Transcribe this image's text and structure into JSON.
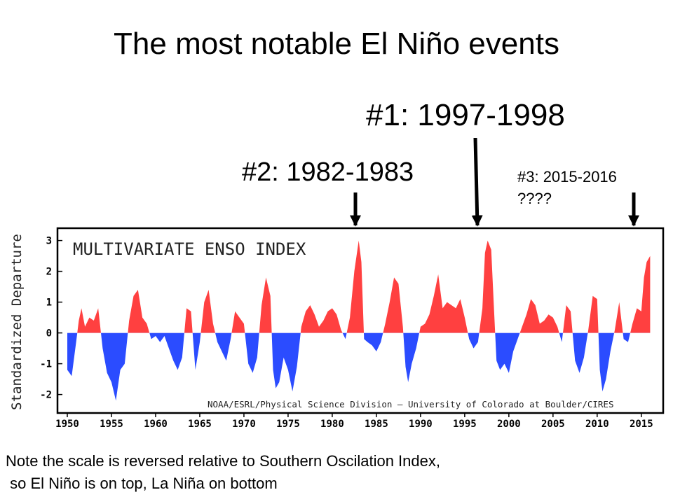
{
  "slide": {
    "title": "The most notable El Niño events",
    "callouts": [
      "#1: 1997-1998",
      "#2: 1982-1983"
    ],
    "callout3": [
      "#3: 2015-2016",
      "????"
    ],
    "note_lines": [
      "Note the scale is reversed relative to Southern Oscilation Index,",
      " so El Niño is on top, La Niña on bottom"
    ]
  },
  "chart_data": {
    "type": "area",
    "title": "MULTIVARIATE ENSO INDEX",
    "ylabel": "Standardized Departure",
    "xlabel": "",
    "credit": "NOAA/ESRL/Physical Science Division – University of Colorado at Boulder/CIRES",
    "xlim": [
      1950,
      2017
    ],
    "ylim": [
      -2.6,
      3.4
    ],
    "x_ticks": [
      1950,
      1955,
      1960,
      1965,
      1970,
      1975,
      1980,
      1985,
      1990,
      1995,
      2000,
      2005,
      2010,
      2015
    ],
    "y_ticks": [
      -2,
      -1,
      0,
      1,
      2,
      3
    ],
    "grid": false,
    "colors": {
      "positive": "#ff4040",
      "negative": "#2b4cff",
      "frame": "#000000"
    },
    "series": [
      {
        "x": [
          1950.0,
          1950.5,
          1951.0,
          1951.3,
          1951.6,
          1952.0,
          1952.5,
          1953.0,
          1953.5,
          1954.0,
          1954.5,
          1955.0,
          1955.5,
          1956.0,
          1956.5,
          1957.0,
          1957.5,
          1958.0,
          1958.5,
          1959.0,
          1959.5,
          1960.0,
          1960.5,
          1961.0,
          1961.5,
          1962.0,
          1962.5,
          1963.0,
          1963.5,
          1964.0,
          1964.5,
          1965.0,
          1965.5,
          1966.0,
          1966.5,
          1967.0,
          1967.5,
          1968.0,
          1968.5,
          1969.0,
          1969.5,
          1970.0,
          1970.5,
          1971.0,
          1971.5,
          1972.0,
          1972.5,
          1973.0,
          1973.3,
          1973.6,
          1974.0,
          1974.5,
          1975.0,
          1975.5,
          1976.0,
          1976.5,
          1977.0,
          1977.5,
          1978.0,
          1978.5,
          1979.0,
          1979.5,
          1980.0,
          1980.5,
          1981.0,
          1981.5,
          1982.0,
          1982.5,
          1983.0,
          1983.3,
          1983.6,
          1984.0,
          1984.5,
          1985.0,
          1985.5,
          1986.0,
          1986.5,
          1987.0,
          1987.5,
          1988.0,
          1988.3,
          1988.6,
          1989.0,
          1989.5,
          1990.0,
          1990.5,
          1991.0,
          1991.5,
          1992.0,
          1992.5,
          1993.0,
          1993.5,
          1994.0,
          1994.5,
          1995.0,
          1995.5,
          1996.0,
          1996.5,
          1997.0,
          1997.3,
          1997.6,
          1998.0,
          1998.3,
          1998.6,
          1999.0,
          1999.5,
          2000.0,
          2000.5,
          2001.0,
          2001.5,
          2002.0,
          2002.5,
          2003.0,
          2003.5,
          2004.0,
          2004.5,
          2005.0,
          2005.5,
          2006.0,
          2006.5,
          2007.0,
          2007.5,
          2008.0,
          2008.5,
          2009.0,
          2009.5,
          2010.0,
          2010.3,
          2010.6,
          2011.0,
          2011.5,
          2012.0,
          2012.5,
          2013.0,
          2013.5,
          2014.0,
          2014.5,
          2015.0,
          2015.3,
          2015.6,
          2016.0
        ],
        "values": [
          -1.2,
          -1.4,
          -0.3,
          0.4,
          0.8,
          0.2,
          0.5,
          0.4,
          0.8,
          -0.5,
          -1.3,
          -1.6,
          -2.2,
          -1.2,
          -1.0,
          0.4,
          1.2,
          1.4,
          0.5,
          0.3,
          -0.2,
          -0.1,
          -0.3,
          -0.1,
          -0.5,
          -0.9,
          -1.2,
          -0.8,
          0.8,
          0.7,
          -1.2,
          -0.3,
          1.0,
          1.4,
          0.3,
          -0.3,
          -0.6,
          -0.9,
          -0.2,
          0.7,
          0.5,
          0.3,
          -1.0,
          -1.3,
          -0.8,
          0.9,
          1.8,
          1.2,
          -1.2,
          -1.8,
          -1.6,
          -0.8,
          -1.2,
          -1.9,
          -1.1,
          0.2,
          0.7,
          0.9,
          0.6,
          0.2,
          0.4,
          0.7,
          0.8,
          0.6,
          0.1,
          -0.2,
          0.5,
          2.0,
          3.0,
          2.3,
          -0.2,
          -0.3,
          -0.4,
          -0.6,
          -0.3,
          0.3,
          1.0,
          1.8,
          1.6,
          0.2,
          -1.1,
          -1.6,
          -1.0,
          -0.5,
          0.2,
          0.3,
          0.6,
          1.2,
          1.9,
          0.8,
          1.0,
          0.9,
          0.8,
          1.1,
          0.5,
          -0.2,
          -0.5,
          -0.3,
          0.8,
          2.6,
          3.0,
          2.7,
          0.9,
          -0.9,
          -1.2,
          -1.0,
          -1.3,
          -0.6,
          -0.2,
          0.2,
          0.6,
          1.1,
          0.9,
          0.3,
          0.4,
          0.6,
          0.5,
          0.2,
          -0.3,
          0.9,
          0.7,
          -0.9,
          -1.3,
          -0.8,
          0.1,
          1.2,
          1.1,
          -1.2,
          -1.9,
          -1.5,
          -0.6,
          0.1,
          1.0,
          -0.2,
          -0.3,
          0.3,
          0.8,
          0.7,
          1.8,
          2.3,
          2.5
        ]
      }
    ],
    "highlight_years": [
      1983.1,
      1997.7,
      2015.8
    ]
  }
}
